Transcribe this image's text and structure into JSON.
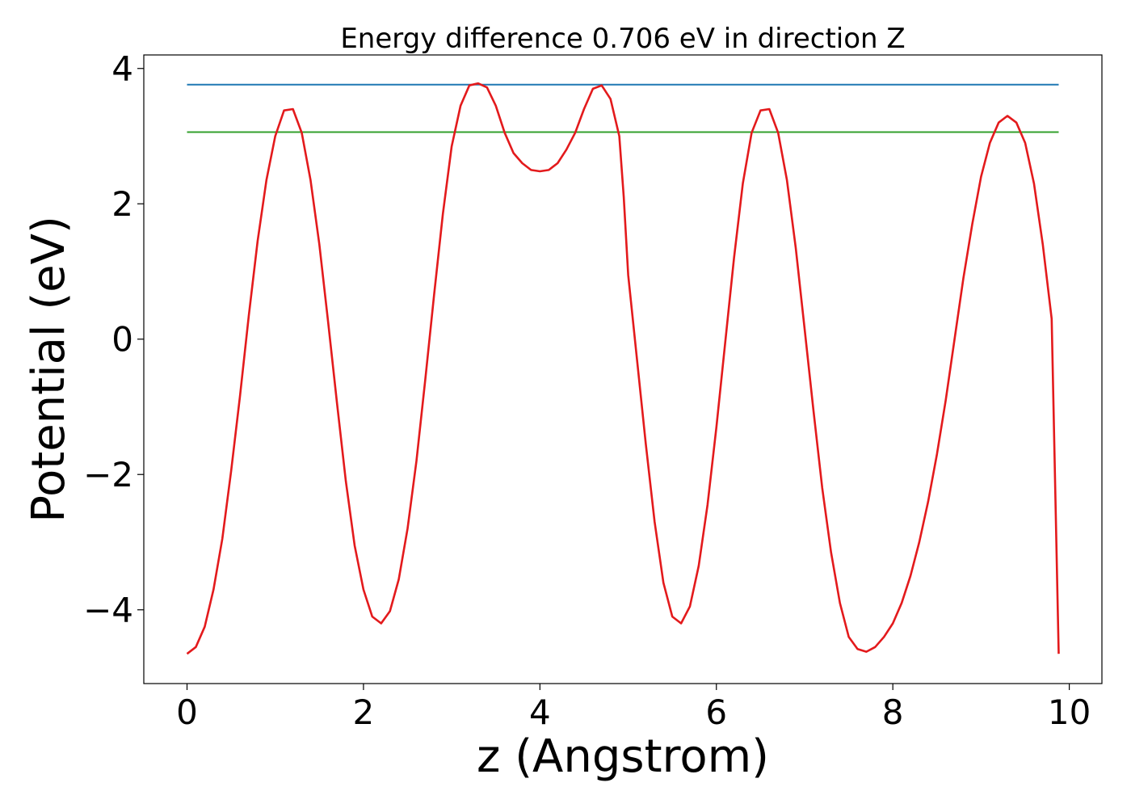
{
  "chart_data": {
    "type": "line",
    "title": "Energy difference 0.706 eV in direction Z",
    "xlabel": "z (Angstrom)",
    "ylabel": "Potential (eV)",
    "xlim": [
      -0.49,
      10.37
    ],
    "ylim": [
      -5.09,
      4.2
    ],
    "xticks": [
      0,
      2,
      4,
      6,
      8,
      10
    ],
    "xtick_labels": [
      "0",
      "2",
      "4",
      "6",
      "8",
      "10"
    ],
    "yticks": [
      -4,
      -2,
      0,
      2,
      4
    ],
    "ytick_labels": [
      "−4",
      "−2",
      "0",
      "2",
      "4"
    ],
    "grid": false,
    "series": [
      {
        "color": "#e31a1c",
        "x": [
          0.0,
          0.1,
          0.2,
          0.3,
          0.4,
          0.5,
          0.6,
          0.7,
          0.8,
          0.9,
          1.0,
          1.1,
          1.2,
          1.3,
          1.4,
          1.5,
          1.6,
          1.7,
          1.8,
          1.9,
          2.0,
          2.1,
          2.2,
          2.3,
          2.4,
          2.5,
          2.6,
          2.7,
          2.8,
          2.9,
          3.0,
          3.1,
          3.2,
          3.3,
          3.4,
          3.5,
          3.6,
          3.7,
          3.8,
          3.9,
          4.0,
          4.1,
          4.15,
          4.2,
          4.3,
          4.4,
          4.5,
          4.6,
          4.7,
          4.8,
          4.9,
          4.95,
          5.0,
          5.1,
          5.2,
          5.3,
          5.4,
          5.5,
          5.6,
          5.7,
          5.8,
          5.9,
          6.0,
          6.1,
          6.2,
          6.3,
          6.4,
          6.5,
          6.6,
          6.7,
          6.8,
          6.9,
          7.0,
          7.1,
          7.2,
          7.3,
          7.4,
          7.5,
          7.6,
          7.7,
          7.8,
          7.9,
          8.0,
          8.1,
          8.2,
          8.3,
          8.4,
          8.5,
          8.6,
          8.7,
          8.8,
          8.9,
          9.0,
          9.1,
          9.2,
          9.3,
          9.4,
          9.5,
          9.6,
          9.7,
          9.8,
          9.88
        ],
        "y": [
          -4.65,
          -4.55,
          -4.25,
          -3.7,
          -2.95,
          -1.95,
          -0.85,
          0.35,
          1.45,
          2.35,
          3.0,
          3.38,
          3.4,
          3.05,
          2.35,
          1.4,
          0.25,
          -0.95,
          -2.1,
          -3.05,
          -3.7,
          -4.1,
          -4.2,
          -4.02,
          -3.55,
          -2.8,
          -1.8,
          -0.6,
          0.65,
          1.85,
          2.85,
          3.45,
          3.75,
          3.78,
          3.72,
          3.45,
          3.05,
          2.75,
          2.6,
          2.5,
          2.48,
          2.5,
          2.55,
          2.6,
          2.8,
          3.05,
          3.4,
          3.7,
          3.75,
          3.55,
          3.0,
          2.1,
          0.95,
          -0.3,
          -1.55,
          -2.7,
          -3.6,
          -4.1,
          -4.2,
          -3.95,
          -3.35,
          -2.45,
          -1.3,
          -0.05,
          1.2,
          2.3,
          3.05,
          3.38,
          3.4,
          3.05,
          2.35,
          1.35,
          0.15,
          -1.05,
          -2.2,
          -3.15,
          -3.9,
          -4.4,
          -4.58,
          -4.62,
          -4.55,
          -4.4,
          -4.2,
          -3.9,
          -3.5,
          -3.0,
          -2.4,
          -1.7,
          -0.9,
          0.0,
          0.9,
          1.7,
          2.4,
          2.9,
          3.2,
          3.3,
          3.2,
          2.9,
          2.3,
          1.4,
          0.3,
          -4.65
        ]
      },
      {
        "color": "#1f78b4",
        "x": [
          0.0,
          9.88
        ],
        "y": [
          3.76,
          3.76
        ]
      },
      {
        "color": "#33a02c",
        "x": [
          0.0,
          9.88
        ],
        "y": [
          3.06,
          3.06
        ]
      }
    ]
  }
}
